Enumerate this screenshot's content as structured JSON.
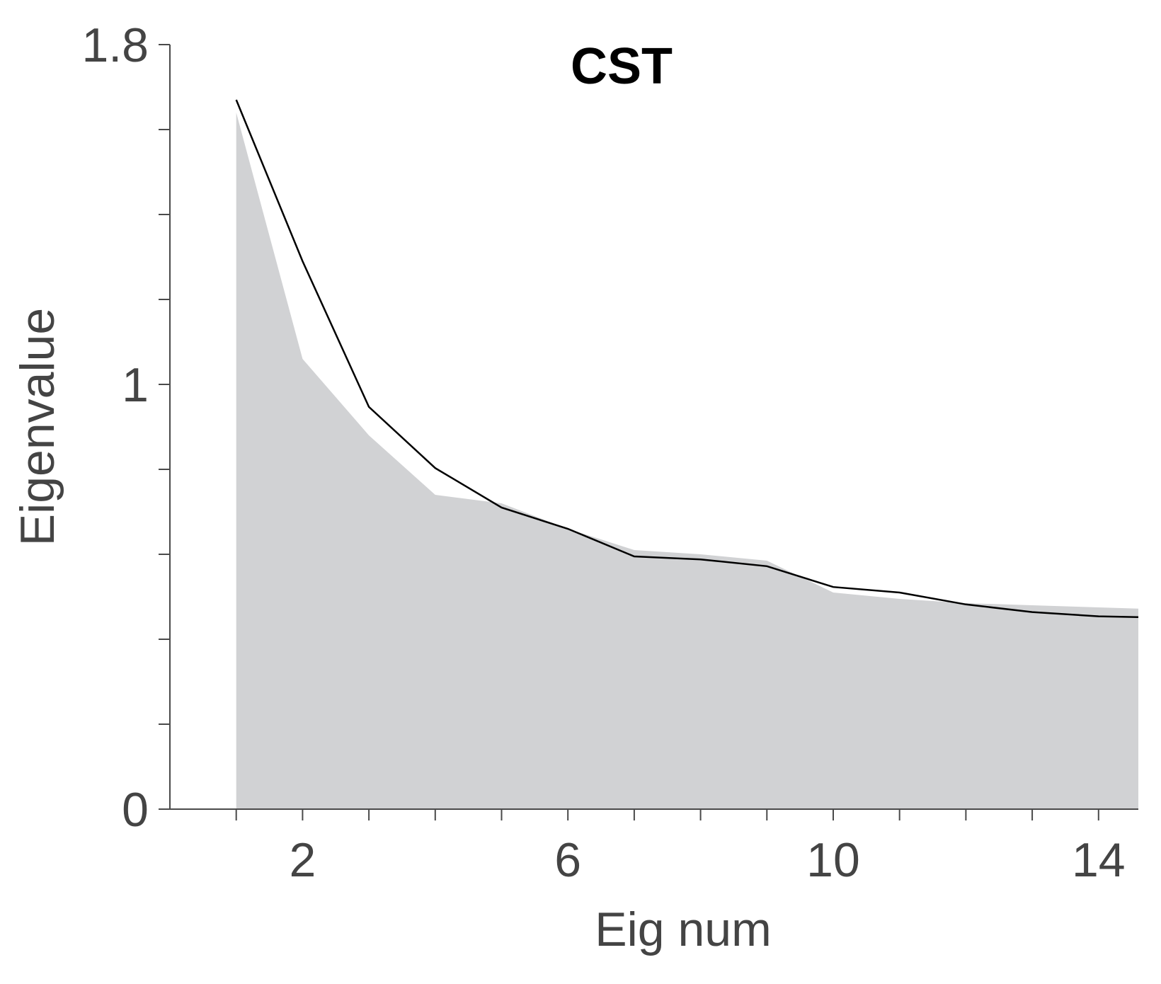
{
  "chart_data": {
    "type": "area",
    "title": "CST",
    "xlabel": "Eig num",
    "ylabel": "Eigenvalue",
    "xlim": [
      0,
      14.6
    ],
    "ylim": [
      0,
      1.8
    ],
    "x_tick_labels": [
      "2",
      "6",
      "10",
      "14"
    ],
    "y_tick_labels": [
      "0",
      "1",
      "1.8"
    ],
    "colors": {
      "area": "#d1d2d4",
      "line": "#000000",
      "axis": "#4a4a4a"
    },
    "series": [
      {
        "style": "filled-area",
        "x": [
          1,
          2,
          3,
          4,
          5,
          6,
          7,
          8,
          9,
          10,
          11,
          12,
          13,
          14,
          14.6
        ],
        "values": [
          1.64,
          1.06,
          0.88,
          0.74,
          0.72,
          0.66,
          0.61,
          0.6,
          0.585,
          0.51,
          0.495,
          0.485,
          0.48,
          0.475,
          0.472
        ]
      },
      {
        "style": "line",
        "x": [
          1,
          2,
          3,
          4,
          5,
          6,
          7,
          8,
          9,
          10,
          11,
          12,
          13,
          14,
          14.6
        ],
        "values": [
          1.67,
          1.29,
          0.947,
          0.803,
          0.71,
          0.66,
          0.595,
          0.588,
          0.572,
          0.523,
          0.51,
          0.482,
          0.464,
          0.454,
          0.452
        ]
      }
    ]
  }
}
